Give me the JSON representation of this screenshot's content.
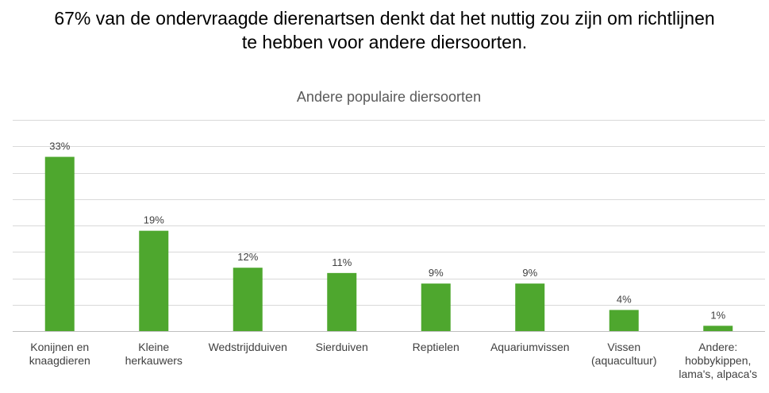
{
  "headline": {
    "line1": "67% van de ondervraagde dierenartsen denkt dat het nuttig zou zijn om richtlijnen",
    "line2": "te hebben voor andere diersoorten."
  },
  "colors": {
    "bar": "#4ea72e",
    "grid": "#d9d9d9",
    "axis": "#bfbfbf",
    "text": "#404040",
    "title": "#595959"
  },
  "chart_data": {
    "type": "bar",
    "title": "Andere populaire diersoorten",
    "xlabel": "",
    "ylabel": "",
    "ylim": [
      0,
      40
    ],
    "grid": true,
    "legend": "none",
    "categories": [
      [
        "Konijnen en",
        "knaagdieren"
      ],
      [
        "Kleine",
        "herkauwers"
      ],
      [
        "Wedstrijdduiven"
      ],
      [
        "Sierduiven"
      ],
      [
        "Reptielen"
      ],
      [
        "Aquariumvissen"
      ],
      [
        "Vissen",
        "(aquacultuur)"
      ],
      [
        "Andere:",
        "hobbykippen,",
        "lama's, alpaca's"
      ]
    ],
    "values": [
      33,
      19,
      12,
      11,
      9,
      9,
      4,
      1
    ],
    "value_labels": [
      "33%",
      "19%",
      "12%",
      "11%",
      "9%",
      "9%",
      "4%",
      "1%"
    ]
  }
}
